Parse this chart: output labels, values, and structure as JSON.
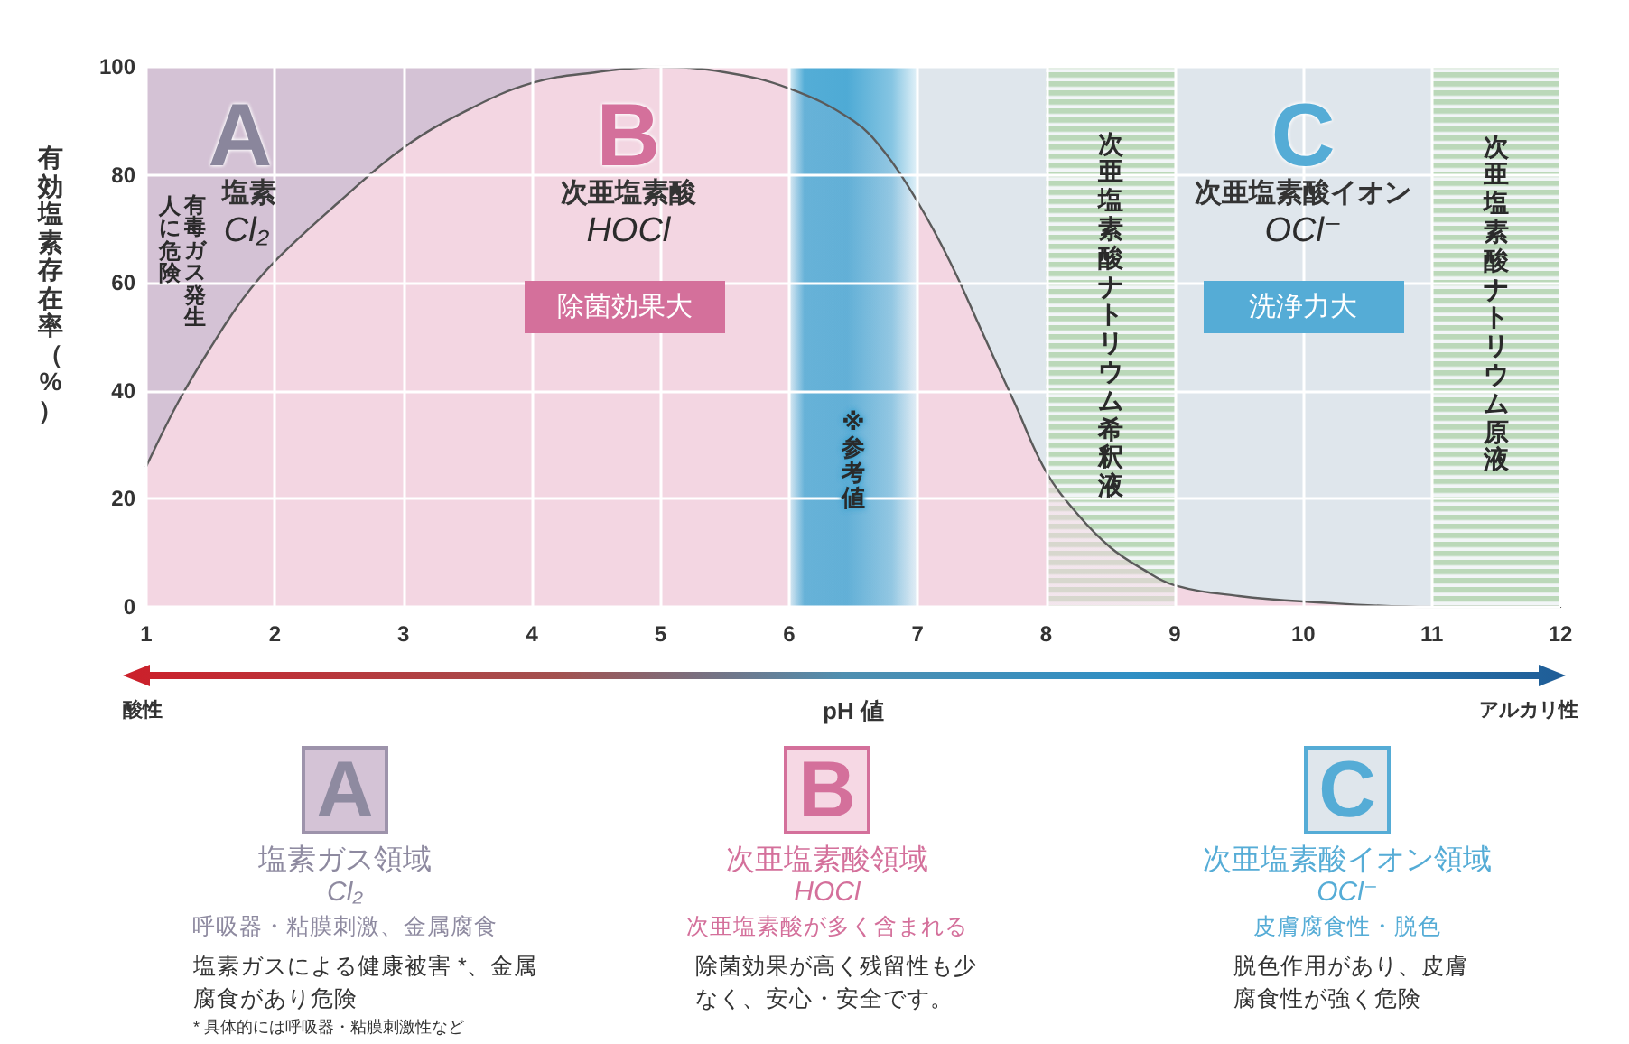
{
  "chart_data": [
    {
      "type": "area",
      "xlabel": "pH 値",
      "ylabel": "有効塩素存在率（%）",
      "x": [
        1,
        1.25,
        1.5,
        1.75,
        2,
        2.5,
        3,
        3.5,
        4,
        4.5,
        5,
        5.5,
        6,
        6.5,
        6.75,
        7,
        7.25,
        7.5,
        7.75,
        8,
        8.25,
        8.5,
        8.75,
        9,
        9.5,
        10,
        11,
        12
      ],
      "values": [
        26,
        38,
        48,
        57,
        64,
        75,
        85,
        92,
        97,
        99,
        100,
        99,
        96,
        90,
        84,
        75,
        64,
        51,
        38,
        25,
        17,
        11,
        7,
        4,
        2,
        1,
        0,
        0
      ],
      "color": "#f3d6e2",
      "xlim": [
        1,
        12
      ],
      "xticks": [
        1,
        2,
        3,
        4,
        5,
        6,
        7,
        8,
        9,
        10,
        11,
        12
      ],
      "ylim": [
        0,
        100
      ],
      "yticks": [
        0,
        20,
        40,
        60,
        80,
        100
      ],
      "grid": true,
      "bands": [
        {
          "axis": "x",
          "from": 1,
          "to": 5,
          "color": "#d4c2d5"
        },
        {
          "axis": "x",
          "from": 5,
          "to": 6,
          "color": "#f3d6e2"
        },
        {
          "axis": "x",
          "from": 7,
          "to": 12,
          "color": "#dfe6ec"
        },
        {
          "axis": "x",
          "from": 6,
          "to": 7,
          "label": "※参考値",
          "color": "#45a6d3"
        },
        {
          "axis": "x",
          "from": 8,
          "to": 9,
          "label": "次亜塩素酸ナトリウム希釈液",
          "color": "#b7d6b4"
        },
        {
          "axis": "x",
          "from": 11,
          "to": 12,
          "label": "次亜塩素酸ナトリウム原液",
          "color": "#b7d6b4"
        }
      ],
      "annotations": [
        "A",
        "塩素",
        "Cl₂",
        "有毒ガス発生",
        "人に危険",
        "B",
        "次亜塩素酸",
        "HOCl",
        "除菌効果大",
        "C",
        "次亜塩素酸イオン",
        "OCl⁻",
        "洗浄力大",
        "酸性",
        "アルカリ性"
      ]
    },
    {
      "type": "other",
      "annotations": [
        "A",
        "塩素ガス領域",
        "Cl₂",
        "呼吸器・粘膜刺激、金属腐食",
        "塩素ガスによる健康被害 *、金属腐食があり危険",
        "* 具体的には呼吸器・粘膜刺激性など",
        "B",
        "次亜塩素酸領域",
        "HOCl",
        "次亜塩素酸が多く含まれる",
        "除菌効果が高く残留性も少なく、安心・安全です。",
        "C",
        "次亜塩素酸イオン領域",
        "OCl⁻",
        "皮膚腐食性・脱色",
        "脱色作用があり、皮膚腐食性が強く危険"
      ]
    }
  ]
}
